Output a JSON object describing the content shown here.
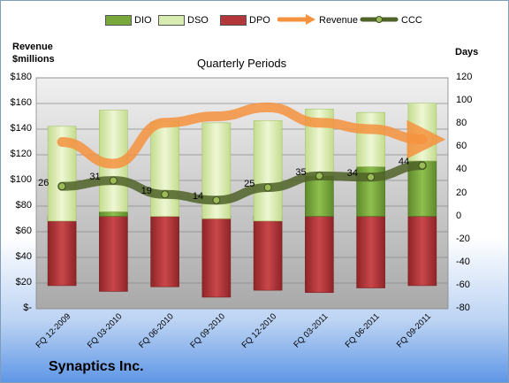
{
  "left_axis_title": "Revenue $millions",
  "right_axis_title": "Days",
  "company": "Synaptics Inc.",
  "chart_data": {
    "type": "bar",
    "title": "Quarterly Periods",
    "categories": [
      "FQ 12-2009",
      "FQ 03-2010",
      "FQ 06-2010",
      "FQ 09-2010",
      "FQ 12-2010",
      "FQ 03-2011",
      "FQ 06-2011",
      "FQ 09-2011"
    ],
    "left_axis": {
      "min": 0,
      "max": 180,
      "step": 20,
      "tick_labels": [
        "$-",
        "$20",
        "$40",
        "$60",
        "$80",
        "$100",
        "$120",
        "$140",
        "$160",
        "$180"
      ]
    },
    "right_axis": {
      "min": -80,
      "max": 120,
      "step": 20
    },
    "legend_position": "top",
    "series": [
      {
        "name": "DIO",
        "kind": "stacked-bar-positive",
        "color": "#78a83c",
        "values": [
          -4,
          4,
          0,
          -2,
          -4,
          35,
          43,
          48
        ]
      },
      {
        "name": "DSO",
        "kind": "stacked-bar-positive",
        "color": "#d8ebb0",
        "values": [
          82,
          88,
          82,
          83,
          87,
          58,
          47,
          50
        ]
      },
      {
        "name": "DPO",
        "kind": "bar-negative",
        "color": "#b3373a",
        "values": [
          -60,
          -65,
          -61,
          -70,
          -64,
          -66,
          -62,
          -60
        ]
      },
      {
        "name": "Revenue",
        "kind": "line-left-axis",
        "color": "#f5923e",
        "values": [
          130,
          113,
          145,
          150,
          157,
          145,
          140,
          132
        ]
      },
      {
        "name": "CCC",
        "kind": "line-right-axis",
        "color": "#4f6228",
        "values": [
          26,
          31,
          19,
          14,
          25,
          35,
          34,
          44
        ]
      }
    ]
  }
}
